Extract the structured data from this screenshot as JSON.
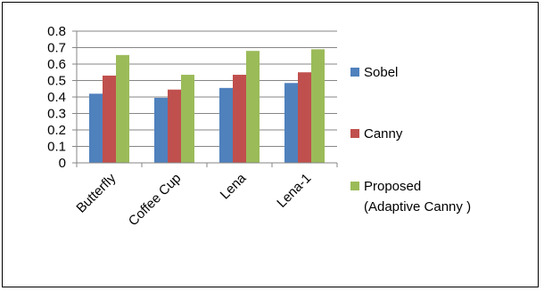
{
  "chart_data": {
    "type": "bar",
    "title": "",
    "xlabel": "",
    "ylabel": "",
    "categories": [
      "Butterfly",
      "Coffee Cup",
      "Lena",
      "Lena-1"
    ],
    "series": [
      {
        "name": "Sobel",
        "color": "#4f81bd",
        "values": [
          0.42,
          0.395,
          0.455,
          0.485
        ]
      },
      {
        "name": "Canny",
        "color": "#c0504d",
        "values": [
          0.53,
          0.445,
          0.535,
          0.55
        ]
      },
      {
        "name": "Proposed (Adaptive Canny )",
        "legend_lines": [
          "Proposed",
          "(Adaptive Canny )"
        ],
        "color": "#9bbb59",
        "values": [
          0.655,
          0.535,
          0.68,
          0.69
        ]
      }
    ],
    "ylim": [
      0,
      0.8
    ],
    "yticks": [
      "0",
      "0.1",
      "0.2",
      "0.3",
      "0.4",
      "0.5",
      "0.6",
      "0.7",
      "0.8"
    ],
    "grid": true,
    "legend_position": "right"
  }
}
